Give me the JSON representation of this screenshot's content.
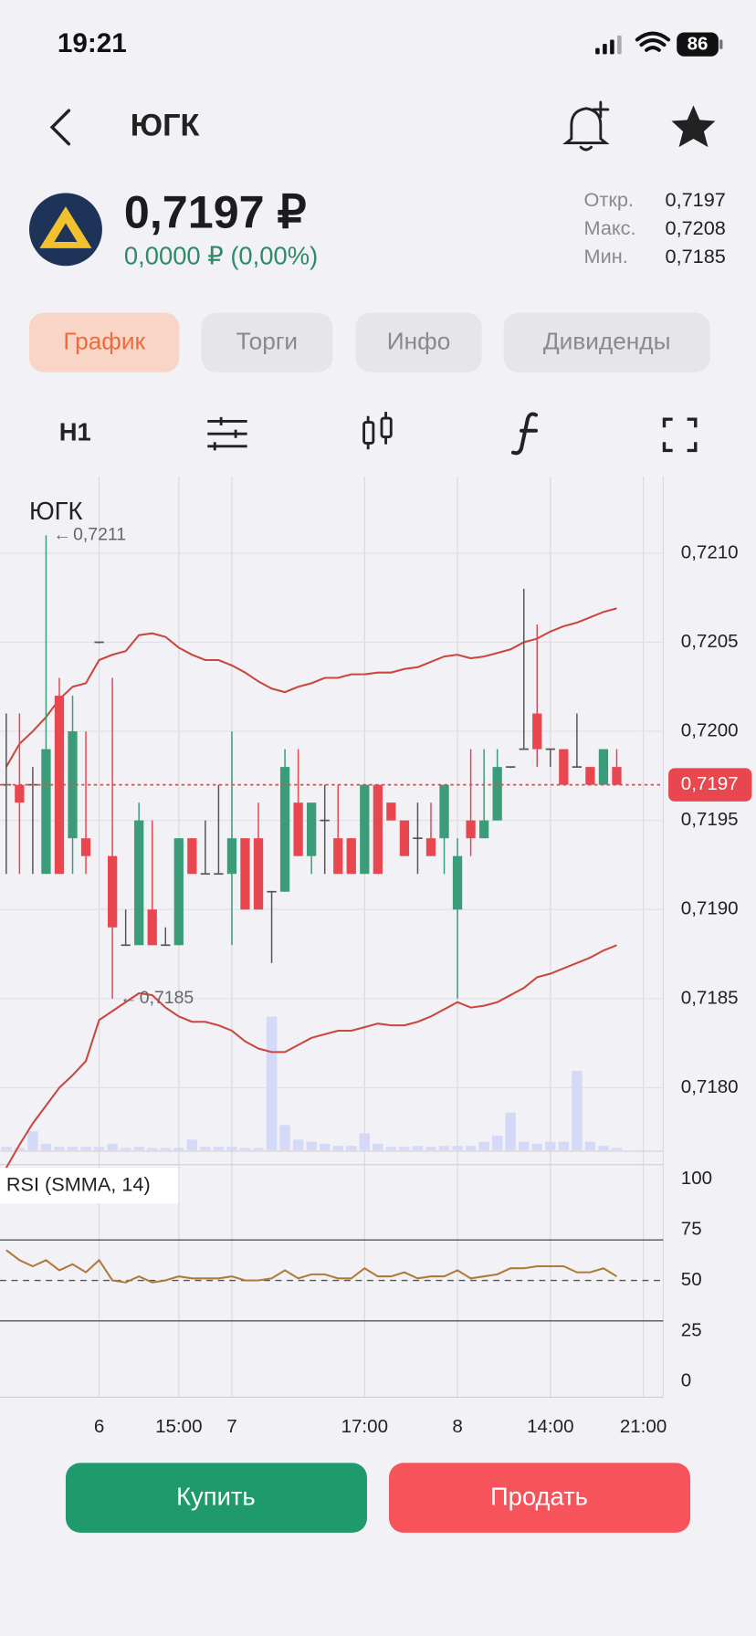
{
  "status": {
    "time": "19:21",
    "battery": "86"
  },
  "header": {
    "title": "ЮГК"
  },
  "quote": {
    "price": "0,7197 ₽",
    "change": "0,0000 ₽ (0,00%)",
    "stats": [
      {
        "label": "Откр.",
        "value": "0,7197"
      },
      {
        "label": "Макс.",
        "value": "0,7208"
      },
      {
        "label": "Мин.",
        "value": "0,7185"
      }
    ]
  },
  "tabs": [
    {
      "label": "График",
      "active": true
    },
    {
      "label": "Торги",
      "active": false
    },
    {
      "label": "Инфо",
      "active": false
    },
    {
      "label": "Дивиденды",
      "active": false
    }
  ],
  "toolbar": {
    "interval": "H1"
  },
  "chart_data": {
    "type": "candlestick",
    "title": "ЮГК",
    "open": [
      0.7197,
      0.7197,
      0.7197,
      0.7192,
      0.7202,
      0.7194,
      0.7194,
      0.7205,
      0.7193,
      0.7188,
      0.7188,
      0.719,
      0.7188,
      0.7188,
      0.7194,
      0.7192,
      0.7192,
      0.7192,
      0.7194,
      0.7194,
      0.7191,
      0.7191,
      0.7196,
      0.7193,
      0.7195,
      0.7194,
      0.7194,
      0.7192,
      0.7197,
      0.7196,
      0.7195,
      0.7194,
      0.7194,
      0.7194,
      0.719,
      0.7195,
      0.7194,
      0.7195,
      0.7198,
      0.7199,
      0.7201,
      0.7199,
      0.7199,
      0.7198,
      0.7198,
      0.7197,
      0.7198
    ],
    "high": [
      0.7201,
      0.7201,
      0.7198,
      0.7211,
      0.7203,
      0.7202,
      0.72,
      0.7205,
      0.7203,
      0.719,
      0.7196,
      0.7195,
      0.7189,
      0.7194,
      0.7194,
      0.7195,
      0.7197,
      0.72,
      0.7194,
      0.7196,
      0.7191,
      0.7199,
      0.7199,
      0.7196,
      0.7197,
      0.7197,
      0.7194,
      0.7197,
      0.7197,
      0.7196,
      0.7195,
      0.7196,
      0.7196,
      0.7197,
      0.7194,
      0.7199,
      0.7199,
      0.7199,
      0.7198,
      0.7208,
      0.7206,
      0.7199,
      0.7199,
      0.7201,
      0.7198,
      0.7199,
      0.7199
    ],
    "low": [
      0.7192,
      0.7192,
      0.7192,
      0.7192,
      0.7192,
      0.7192,
      0.7192,
      0.7205,
      0.7185,
      0.7188,
      0.7188,
      0.7188,
      0.7188,
      0.7188,
      0.7192,
      0.7192,
      0.7192,
      0.7188,
      0.719,
      0.719,
      0.7187,
      0.7191,
      0.7193,
      0.7192,
      0.7192,
      0.7192,
      0.7192,
      0.7192,
      0.7192,
      0.7195,
      0.7193,
      0.7192,
      0.7193,
      0.7192,
      0.7185,
      0.7193,
      0.7194,
      0.7195,
      0.7198,
      0.7199,
      0.7198,
      0.7198,
      0.7197,
      0.7198,
      0.7197,
      0.7197,
      0.7197
    ],
    "close": [
      0.7197,
      0.7196,
      0.7197,
      0.7199,
      0.7192,
      0.72,
      0.7193,
      0.7205,
      0.7189,
      0.7188,
      0.7195,
      0.7188,
      0.7188,
      0.7194,
      0.7192,
      0.7192,
      0.7192,
      0.7194,
      0.719,
      0.719,
      0.7191,
      0.7198,
      0.7193,
      0.7196,
      0.7195,
      0.7192,
      0.7192,
      0.7197,
      0.7192,
      0.7195,
      0.7193,
      0.7194,
      0.7193,
      0.7197,
      0.7193,
      0.7194,
      0.7195,
      0.7198,
      0.7198,
      0.7199,
      0.7199,
      0.7199,
      0.7197,
      0.7198,
      0.7197,
      0.7199,
      0.7197
    ],
    "bands": [
      {
        "color": "#c9473c",
        "values": [
          0.7198,
          0.71993,
          0.72,
          0.72008,
          0.72018,
          0.72025,
          0.72027,
          0.7204,
          0.72043,
          0.72045,
          0.72054,
          0.72055,
          0.72053,
          0.72047,
          0.72043,
          0.7204,
          0.7204,
          0.72037,
          0.72033,
          0.72028,
          0.72024,
          0.72022,
          0.72025,
          0.72027,
          0.7203,
          0.7203,
          0.72032,
          0.72032,
          0.72033,
          0.72033,
          0.72035,
          0.72036,
          0.72039,
          0.72042,
          0.72043,
          0.72041,
          0.72042,
          0.72044,
          0.72046,
          0.7205,
          0.72052,
          0.72056,
          0.72059,
          0.72061,
          0.72064,
          0.72067,
          0.72069
        ]
      },
      {
        "color": "#c9473c",
        "values": [
          0.71755,
          0.71768,
          0.7178,
          0.7179,
          0.718,
          0.71807,
          0.71815,
          0.71838,
          0.71843,
          0.71848,
          0.71853,
          0.71852,
          0.71845,
          0.7184,
          0.71837,
          0.71837,
          0.71835,
          0.71832,
          0.71826,
          0.71822,
          0.7182,
          0.7182,
          0.71824,
          0.71828,
          0.7183,
          0.71832,
          0.71832,
          0.71834,
          0.71836,
          0.71835,
          0.71835,
          0.71837,
          0.7184,
          0.71844,
          0.71848,
          0.71845,
          0.71846,
          0.71848,
          0.71852,
          0.71856,
          0.71862,
          0.71864,
          0.71867,
          0.7187,
          0.71873,
          0.71877,
          0.7188
        ]
      }
    ],
    "volume": {
      "color": "#d3d9f6",
      "values": [
        3,
        2,
        18,
        6,
        3,
        3,
        3,
        3,
        6,
        2,
        3,
        2,
        2,
        2,
        10,
        3,
        3,
        3,
        2,
        2,
        128,
        24,
        10,
        8,
        6,
        4,
        4,
        16,
        6,
        3,
        3,
        4,
        3,
        4,
        4,
        4,
        8,
        14,
        36,
        8,
        6,
        8,
        8,
        76,
        8,
        4,
        2
      ]
    },
    "up_color": "#3a9c78",
    "down_color": "#e8474f",
    "ylim": [
      0.71765,
      0.72143
    ],
    "yticks": [
      {
        "value": 0.721,
        "label": "0,7210"
      },
      {
        "value": 0.7205,
        "label": "0,7205"
      },
      {
        "value": 0.72,
        "label": "0,7200"
      },
      {
        "value": 0.7195,
        "label": "0,7195"
      },
      {
        "value": 0.719,
        "label": "0,7190"
      },
      {
        "value": 0.7185,
        "label": "0,7185"
      },
      {
        "value": 0.718,
        "label": "0,7180"
      }
    ],
    "last_price": {
      "value": 0.7197,
      "label": "0,7197"
    },
    "max_marker": {
      "index": 3,
      "value": 0.7211,
      "label": "0,7211"
    },
    "min_marker": {
      "index": 8,
      "value": 0.7185,
      "label": "0,7185"
    },
    "xlim": [
      -0.47,
      49.5
    ],
    "xticks": [
      {
        "value": 7,
        "label": "6"
      },
      {
        "value": 13,
        "label": "15:00"
      },
      {
        "value": 17,
        "label": "7"
      },
      {
        "value": 27,
        "label": "17:00"
      },
      {
        "value": 34,
        "label": "8"
      },
      {
        "value": 41,
        "label": "14:00"
      },
      {
        "value": 48,
        "label": "21:00"
      }
    ],
    "rsi": {
      "title": "RSI (SMMA, 14)",
      "color": "#b07a3a",
      "values": [
        65,
        60,
        57,
        60,
        55,
        58,
        54,
        60,
        50,
        49,
        52,
        49,
        50,
        52,
        51,
        51,
        51,
        52,
        50,
        50,
        51,
        55,
        51,
        53,
        53,
        51,
        51,
        56,
        52,
        52,
        54,
        51,
        52,
        52,
        55,
        51,
        52,
        53,
        56,
        56,
        57,
        57,
        57,
        54,
        54,
        56,
        52
      ],
      "ylim": [
        0,
        100
      ],
      "yticks": [
        100,
        75,
        50,
        25,
        0
      ],
      "levels": [
        70,
        50,
        30
      ]
    }
  },
  "actions": {
    "buy": "Купить",
    "sell": "Продать"
  }
}
